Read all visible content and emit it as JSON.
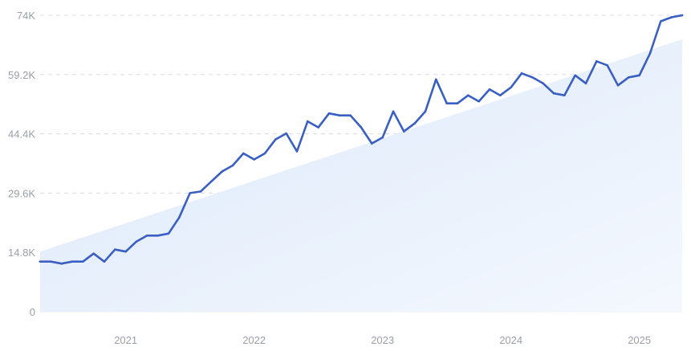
{
  "chart_data": {
    "type": "line",
    "title": "",
    "xlabel": "",
    "ylabel": "",
    "ylim": [
      0,
      74000
    ],
    "y_ticks": [
      {
        "value": 0,
        "label": "0"
      },
      {
        "value": 14800,
        "label": "14.8K"
      },
      {
        "value": 29600,
        "label": "29.6K"
      },
      {
        "value": 44400,
        "label": "44.4K"
      },
      {
        "value": 59200,
        "label": "59.2K"
      },
      {
        "value": 74000,
        "label": "74K"
      }
    ],
    "x_ticks": [
      {
        "value": "2021-01",
        "label": "2021"
      },
      {
        "value": "2022-01",
        "label": "2022"
      },
      {
        "value": "2023-01",
        "label": "2023"
      },
      {
        "value": "2024-01",
        "label": "2024"
      },
      {
        "value": "2025-01",
        "label": "2025"
      }
    ],
    "grid": true,
    "legend": "none",
    "colors": {
      "line": "#3a5fc3",
      "trend_fill_start": "#dce8fa",
      "trend_fill_end": "#f4f8fe",
      "grid": "#d7dbe0",
      "tick_text": "#9aa0a6"
    },
    "trend_area": {
      "start": {
        "x": "2020-05",
        "y": 15000
      },
      "end": {
        "x": "2025-05",
        "y": 68000
      }
    },
    "series": [
      {
        "x": [
          "2020-05",
          "2020-06",
          "2020-07",
          "2020-08",
          "2020-09",
          "2020-10",
          "2020-11",
          "2020-12",
          "2021-01",
          "2021-02",
          "2021-03",
          "2021-04",
          "2021-05",
          "2021-06",
          "2021-07",
          "2021-08",
          "2021-09",
          "2021-10",
          "2021-11",
          "2021-12",
          "2022-01",
          "2022-02",
          "2022-03",
          "2022-04",
          "2022-05",
          "2022-06",
          "2022-07",
          "2022-08",
          "2022-09",
          "2022-10",
          "2022-11",
          "2022-12",
          "2023-01",
          "2023-02",
          "2023-03",
          "2023-04",
          "2023-05",
          "2023-06",
          "2023-07",
          "2023-08",
          "2023-09",
          "2023-10",
          "2023-11",
          "2023-12",
          "2024-01",
          "2024-02",
          "2024-03",
          "2024-04",
          "2024-05",
          "2024-06",
          "2024-07",
          "2024-08",
          "2024-09",
          "2024-10",
          "2024-11",
          "2024-12",
          "2025-01",
          "2025-02",
          "2025-03",
          "2025-04",
          "2025-05"
        ],
        "values": [
          12500,
          12500,
          12000,
          12500,
          12500,
          14500,
          12500,
          15500,
          15000,
          17500,
          19000,
          19000,
          19500,
          23500,
          29600,
          30000,
          32500,
          35000,
          36500,
          39500,
          38000,
          39500,
          43000,
          44500,
          40000,
          47500,
          46000,
          49500,
          49000,
          49000,
          46000,
          42000,
          43500,
          50000,
          45000,
          47000,
          50000,
          58000,
          52000,
          52000,
          54000,
          52500,
          55500,
          54000,
          56000,
          59500,
          58500,
          57000,
          54500,
          54000,
          59000,
          57000,
          62500,
          61500,
          56500,
          58500,
          59000,
          64500,
          72500,
          73500,
          74000
        ]
      }
    ]
  }
}
